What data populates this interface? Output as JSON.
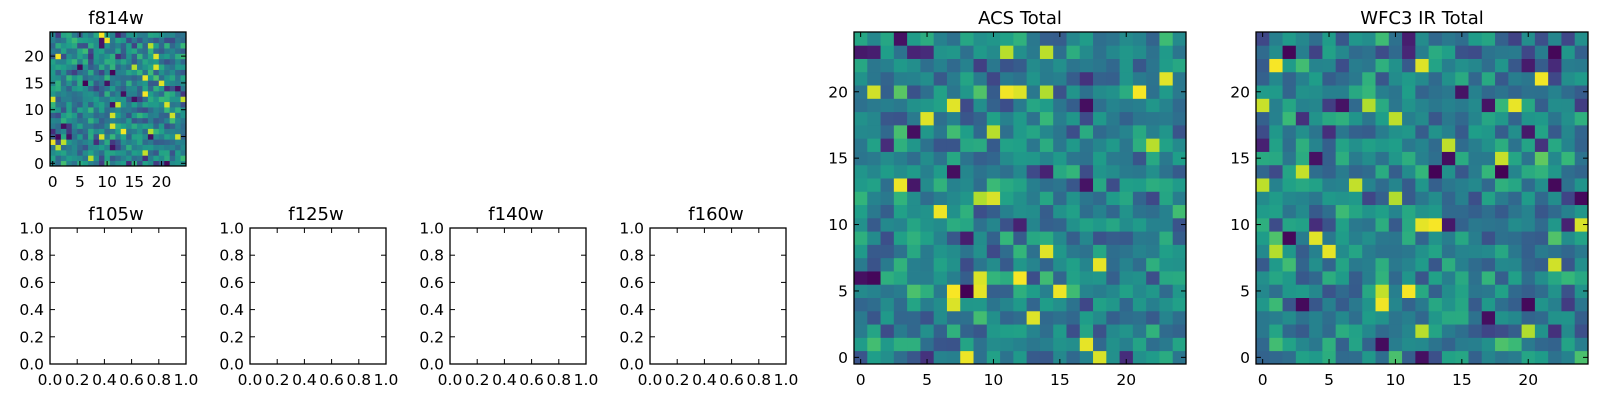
{
  "chart_data": [
    {
      "id": "f814w",
      "type": "heatmap",
      "title": "f814w",
      "colormap": "viridis",
      "grid": false,
      "shape": [
        25,
        25
      ],
      "origin": "lower",
      "xlim": [
        -0.5,
        24.5
      ],
      "ylim": [
        -0.5,
        24.5
      ],
      "xticks": [
        0,
        5,
        10,
        15,
        20
      ],
      "yticks": [
        0,
        5,
        10,
        15,
        20
      ],
      "xtick_labels": [
        "0",
        "5",
        "10",
        "15",
        "20"
      ],
      "ytick_labels": [
        "0",
        "5",
        "10",
        "15",
        "20"
      ],
      "value_range": [
        0,
        1
      ],
      "seed": 814,
      "values": []
    },
    {
      "id": "f105w",
      "type": "scatter",
      "title": "f105w",
      "grid": false,
      "xlim": [
        0,
        1
      ],
      "ylim": [
        0,
        1
      ],
      "xticks": [
        0,
        0.2,
        0.4,
        0.6,
        0.8,
        1.0
      ],
      "yticks": [
        0,
        0.2,
        0.4,
        0.6,
        0.8,
        1.0
      ],
      "xtick_labels": [
        "0.0",
        "0.2",
        "0.4",
        "0.6",
        "0.8",
        "1.0"
      ],
      "ytick_labels": [
        "0.0",
        "0.2",
        "0.4",
        "0.6",
        "0.8",
        "1.0"
      ],
      "series": []
    },
    {
      "id": "f125w",
      "type": "scatter",
      "title": "f125w",
      "grid": false,
      "xlim": [
        0,
        1
      ],
      "ylim": [
        0,
        1
      ],
      "xticks": [
        0,
        0.2,
        0.4,
        0.6,
        0.8,
        1.0
      ],
      "yticks": [
        0,
        0.2,
        0.4,
        0.6,
        0.8,
        1.0
      ],
      "xtick_labels": [
        "0.0",
        "0.2",
        "0.4",
        "0.6",
        "0.8",
        "1.0"
      ],
      "ytick_labels": [
        "0.0",
        "0.2",
        "0.4",
        "0.6",
        "0.8",
        "1.0"
      ],
      "series": []
    },
    {
      "id": "f140w",
      "type": "scatter",
      "title": "f140w",
      "grid": false,
      "xlim": [
        0,
        1
      ],
      "ylim": [
        0,
        1
      ],
      "xticks": [
        0,
        0.2,
        0.4,
        0.6,
        0.8,
        1.0
      ],
      "yticks": [
        0,
        0.2,
        0.4,
        0.6,
        0.8,
        1.0
      ],
      "xtick_labels": [
        "0.0",
        "0.2",
        "0.4",
        "0.6",
        "0.8",
        "1.0"
      ],
      "ytick_labels": [
        "0.0",
        "0.2",
        "0.4",
        "0.6",
        "0.8",
        "1.0"
      ],
      "series": []
    },
    {
      "id": "f160w",
      "type": "scatter",
      "title": "f160w",
      "grid": false,
      "xlim": [
        0,
        1
      ],
      "ylim": [
        0,
        1
      ],
      "xticks": [
        0,
        0.2,
        0.4,
        0.6,
        0.8,
        1.0
      ],
      "yticks": [
        0,
        0.2,
        0.4,
        0.6,
        0.8,
        1.0
      ],
      "xtick_labels": [
        "0.0",
        "0.2",
        "0.4",
        "0.6",
        "0.8",
        "1.0"
      ],
      "ytick_labels": [
        "0.0",
        "0.2",
        "0.4",
        "0.6",
        "0.8",
        "1.0"
      ],
      "series": []
    },
    {
      "id": "acs_total",
      "type": "heatmap",
      "title": "ACS Total",
      "colormap": "viridis",
      "grid": false,
      "shape": [
        25,
        25
      ],
      "origin": "lower",
      "xlim": [
        -0.5,
        24.5
      ],
      "ylim": [
        -0.5,
        24.5
      ],
      "xticks": [
        0,
        5,
        10,
        15,
        20
      ],
      "yticks": [
        0,
        5,
        10,
        15,
        20
      ],
      "xtick_labels": [
        "0",
        "5",
        "10",
        "15",
        "20"
      ],
      "ytick_labels": [
        "0",
        "5",
        "10",
        "15",
        "20"
      ],
      "value_range": [
        0,
        1
      ],
      "seed": 2041,
      "values": []
    },
    {
      "id": "wfc3_ir_total",
      "type": "heatmap",
      "title": "WFC3 IR Total",
      "colormap": "viridis",
      "grid": false,
      "shape": [
        25,
        25
      ],
      "origin": "lower",
      "xlim": [
        -0.5,
        24.5
      ],
      "ylim": [
        -0.5,
        24.5
      ],
      "xticks": [
        0,
        5,
        10,
        15,
        20
      ],
      "yticks": [
        0,
        5,
        10,
        15,
        20
      ],
      "xtick_labels": [
        "0",
        "5",
        "10",
        "15",
        "20"
      ],
      "ytick_labels": [
        "0",
        "5",
        "10",
        "15",
        "20"
      ],
      "value_range": [
        0,
        1
      ],
      "seed": 3177,
      "values": []
    }
  ]
}
